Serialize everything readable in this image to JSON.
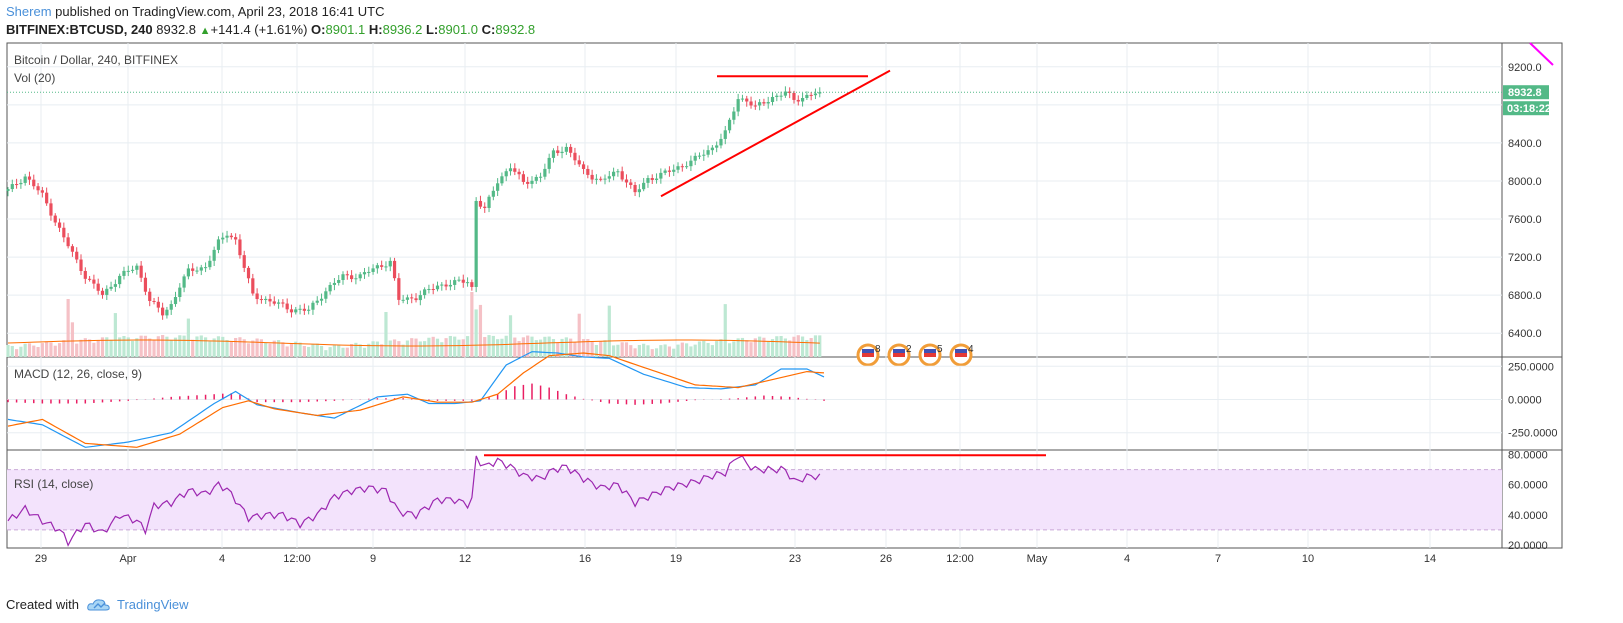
{
  "header": {
    "author": "Sherem",
    "published_text": "published on TradingView.com, April 23, 2018 16:41 UTC",
    "symbol": "BITFINEX:BTCUSD, 240",
    "last": "8932.8",
    "change": "+141.4 (+1.61%)",
    "o_label": "O:",
    "o_value": "8901.1",
    "h_label": "H:",
    "h_value": "8936.2",
    "l_label": "L:",
    "l_value": "8901.0",
    "c_label": "C:",
    "c_value": "8932.8"
  },
  "footer": {
    "created_with": "Created with",
    "brand": "TradingView"
  },
  "colors": {
    "up": "#53b987",
    "down": "#eb4d5c",
    "macd": "#2196f3",
    "signal": "#ff6d00",
    "hist": "#e91e63",
    "rsi": "#9c27b0",
    "rsi_band": "#f3e3fc",
    "trend": "#ff0000",
    "price_tag": "#53b987"
  },
  "chart_data": [
    {
      "type": "candlestick",
      "title": "Bitcoin / Dollar, 240, BITFINEX",
      "volume_label": "Vol (20)",
      "ylim": [
        6150,
        9450
      ],
      "yticks": [
        "9200.0",
        "8800.0",
        "8400.0",
        "8000.0",
        "7600.0",
        "7200.0",
        "6800.0",
        "6400.0"
      ],
      "last_price": "8932.8",
      "countdown": "03:18:22",
      "x_ticks": [
        "29",
        "Apr",
        "4",
        "12:00",
        "9",
        "12",
        "16",
        "19",
        "23",
        "26",
        "12:00",
        "May",
        "4",
        "7",
        "10",
        "14"
      ],
      "close_anchors": [
        [
          0,
          7900
        ],
        [
          4,
          8050
        ],
        [
          8,
          7850
        ],
        [
          13,
          7400
        ],
        [
          18,
          7000
        ],
        [
          22,
          6800
        ],
        [
          26,
          7000
        ],
        [
          30,
          7100
        ],
        [
          33,
          6750
        ],
        [
          36,
          6600
        ],
        [
          38,
          6700
        ],
        [
          40,
          6900
        ],
        [
          42,
          7050
        ],
        [
          46,
          7100
        ],
        [
          49,
          7350
        ],
        [
          51,
          7450
        ],
        [
          53,
          7380
        ],
        [
          57,
          6800
        ],
        [
          62,
          6720
        ],
        [
          66,
          6650
        ],
        [
          70,
          6640
        ],
        [
          74,
          6850
        ],
        [
          78,
          7000
        ],
        [
          82,
          7000
        ],
        [
          86,
          7100
        ],
        [
          89,
          7150
        ],
        [
          91,
          6750
        ],
        [
          95,
          6780
        ],
        [
          100,
          6900
        ],
        [
          104,
          6930
        ],
        [
          107,
          6950
        ],
        [
          108,
          6880
        ],
        [
          109,
          7800
        ],
        [
          111,
          7700
        ],
        [
          114,
          8000
        ],
        [
          117,
          8150
        ],
        [
          120,
          7980
        ],
        [
          124,
          8050
        ],
        [
          127,
          8300
        ],
        [
          130,
          8350
        ],
        [
          134,
          8100
        ],
        [
          138,
          8000
        ],
        [
          142,
          8100
        ],
        [
          144,
          8000
        ],
        [
          146,
          7870
        ],
        [
          149,
          8020
        ],
        [
          154,
          8100
        ],
        [
          160,
          8230
        ],
        [
          164,
          8350
        ],
        [
          167,
          8500
        ],
        [
          170,
          8870
        ],
        [
          172,
          8850
        ],
        [
          174,
          8770
        ],
        [
          178,
          8880
        ],
        [
          181,
          8930
        ],
        [
          183,
          8850
        ],
        [
          187,
          8910
        ],
        [
          189,
          8933
        ]
      ],
      "triangle": {
        "resistance": [
          [
            8820,
            9100
          ],
          [
            8921,
            9100
          ]
        ],
        "support": [
          [
            8500,
            7840
          ],
          [
            8921,
            9120
          ]
        ]
      },
      "events": [
        "8",
        "2",
        "5",
        "4"
      ]
    },
    {
      "type": "line",
      "title": "MACD (12, 26, close, 9)",
      "series": [
        {
          "name": "MACD",
          "values": [
            [
              0,
              -150
            ],
            [
              8,
              -190
            ],
            [
              18,
              -360
            ],
            [
              28,
              -320
            ],
            [
              38,
              -250
            ],
            [
              48,
              -30
            ],
            [
              53,
              60
            ],
            [
              58,
              -40
            ],
            [
              68,
              -100
            ],
            [
              76,
              -140
            ],
            [
              86,
              20
            ],
            [
              93,
              40
            ],
            [
              98,
              -30
            ],
            [
              104,
              -30
            ],
            [
              110,
              -10
            ],
            [
              116,
              260
            ],
            [
              122,
              360
            ],
            [
              128,
              350
            ],
            [
              134,
              320
            ],
            [
              140,
              310
            ],
            [
              148,
              190
            ],
            [
              158,
              90
            ],
            [
              166,
              80
            ],
            [
              174,
              110
            ],
            [
              180,
              230
            ],
            [
              186,
              230
            ],
            [
              190,
              170
            ]
          ]
        },
        {
          "name": "Signal",
          "values": [
            [
              0,
              -200
            ],
            [
              8,
              -150
            ],
            [
              18,
              -330
            ],
            [
              30,
              -360
            ],
            [
              40,
              -260
            ],
            [
              50,
              -60
            ],
            [
              56,
              -10
            ],
            [
              62,
              -70
            ],
            [
              72,
              -120
            ],
            [
              82,
              -80
            ],
            [
              92,
              20
            ],
            [
              100,
              -20
            ],
            [
              108,
              -20
            ],
            [
              114,
              40
            ],
            [
              120,
              200
            ],
            [
              126,
              330
            ],
            [
              134,
              350
            ],
            [
              140,
              330
            ],
            [
              150,
              220
            ],
            [
              160,
              110
            ],
            [
              170,
              90
            ],
            [
              178,
              150
            ],
            [
              186,
              210
            ],
            [
              190,
              200
            ]
          ]
        }
      ],
      "histogram": [
        [
          0,
          -20
        ],
        [
          8,
          -30
        ],
        [
          18,
          -30
        ],
        [
          28,
          -10
        ],
        [
          38,
          20
        ],
        [
          48,
          40
        ],
        [
          53,
          50
        ],
        [
          58,
          -20
        ],
        [
          68,
          -20
        ],
        [
          76,
          -10
        ],
        [
          86,
          10
        ],
        [
          93,
          10
        ],
        [
          98,
          -10
        ],
        [
          104,
          -10
        ],
        [
          110,
          -10
        ],
        [
          114,
          40
        ],
        [
          118,
          100
        ],
        [
          122,
          120
        ],
        [
          126,
          90
        ],
        [
          130,
          40
        ],
        [
          134,
          5
        ],
        [
          140,
          -30
        ],
        [
          146,
          -40
        ],
        [
          152,
          -30
        ],
        [
          160,
          -5
        ],
        [
          170,
          10
        ],
        [
          176,
          30
        ],
        [
          182,
          20
        ],
        [
          190,
          -10
        ]
      ],
      "ylim": [
        -380,
        320
      ],
      "yticks": [
        "250.0000",
        "0.0000",
        "-250.0000"
      ]
    },
    {
      "type": "line",
      "title": "RSI (14, close)",
      "series": [
        {
          "name": "RSI",
          "values": [
            [
              0,
              36
            ],
            [
              4,
              44
            ],
            [
              8,
              36
            ],
            [
              12,
              30
            ],
            [
              14,
              22
            ],
            [
              18,
              34
            ],
            [
              22,
              28
            ],
            [
              26,
              40
            ],
            [
              30,
              36
            ],
            [
              32,
              30
            ],
            [
              34,
              46
            ],
            [
              38,
              48
            ],
            [
              42,
              56
            ],
            [
              46,
              54
            ],
            [
              49,
              60
            ],
            [
              51,
              57
            ],
            [
              53,
              50
            ],
            [
              56,
              38
            ],
            [
              60,
              40
            ],
            [
              64,
              40
            ],
            [
              68,
              34
            ],
            [
              72,
              40
            ],
            [
              76,
              52
            ],
            [
              80,
              56
            ],
            [
              84,
              58
            ],
            [
              88,
              56
            ],
            [
              91,
              42
            ],
            [
              95,
              40
            ],
            [
              100,
              50
            ],
            [
              104,
              50
            ],
            [
              107,
              47
            ],
            [
              108,
              50
            ],
            [
              109,
              78
            ],
            [
              111,
              72
            ],
            [
              114,
              76
            ],
            [
              117,
              72
            ],
            [
              120,
              66
            ],
            [
              124,
              64
            ],
            [
              127,
              70
            ],
            [
              130,
              72
            ],
            [
              134,
              64
            ],
            [
              138,
              58
            ],
            [
              142,
              60
            ],
            [
              144,
              54
            ],
            [
              146,
              48
            ],
            [
              149,
              52
            ],
            [
              154,
              58
            ],
            [
              160,
              62
            ],
            [
              164,
              66
            ],
            [
              167,
              68
            ],
            [
              170,
              80
            ],
            [
              172,
              74
            ],
            [
              174,
              70
            ],
            [
              178,
              70
            ],
            [
              181,
              70
            ],
            [
              183,
              62
            ],
            [
              187,
              66
            ],
            [
              189,
              65
            ]
          ]
        }
      ],
      "ylim": [
        18,
        83
      ],
      "yticks": [
        "80.0000",
        "60.0000",
        "40.0000",
        "20.0000"
      ],
      "band": [
        30,
        70
      ],
      "divergence_line_value": 79.5
    }
  ]
}
